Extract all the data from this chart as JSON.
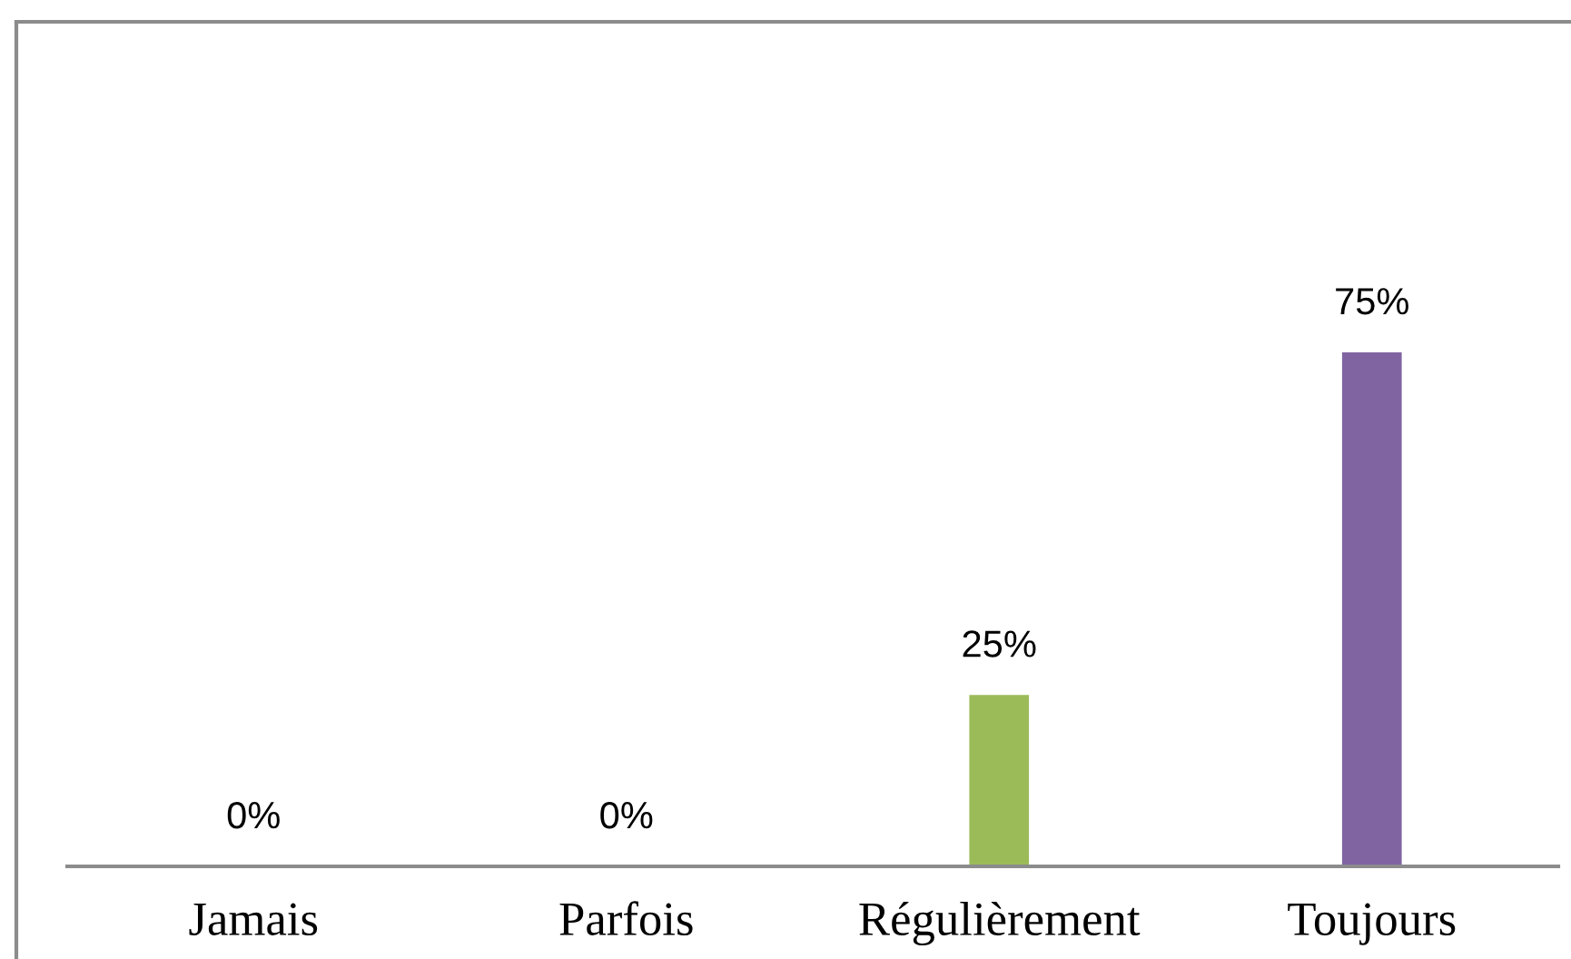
{
  "chart_data": {
    "type": "bar",
    "categories": [
      "Jamais",
      "Parfois",
      "Régulièrement",
      "Toujours"
    ],
    "values": [
      0,
      0,
      25,
      75
    ],
    "colors": [
      "#4f81bd",
      "#c0504d",
      "#9bbb59",
      "#8064a2"
    ],
    "value_labels": [
      "0%",
      "0%",
      "25%",
      "75%"
    ]
  }
}
